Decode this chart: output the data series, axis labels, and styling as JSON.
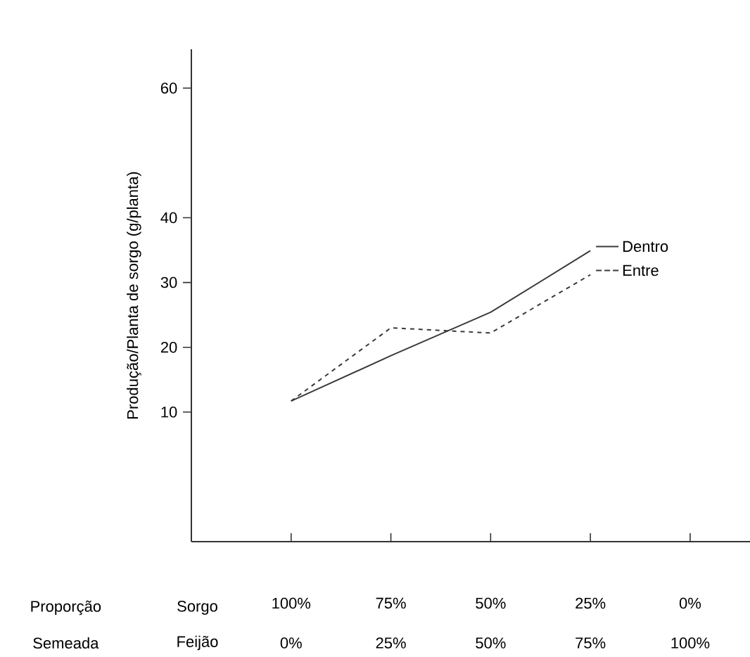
{
  "chart_data": {
    "type": "line",
    "ylabel": "Produção/Planta de sorgo (g/planta)",
    "categories": [
      "100%",
      "75%",
      "50%",
      "25%",
      "0%"
    ],
    "series": [
      {
        "name": "Dentro",
        "color": "#3a3a3a",
        "line_style": "solid",
        "values": [
          11.7,
          18.7,
          25.4,
          34.9,
          null
        ]
      },
      {
        "name": "Entre",
        "color": "#3a3a3a",
        "line_style": "dashed",
        "values": [
          11.7,
          23,
          22.2,
          31.2,
          null
        ]
      }
    ],
    "ylim": [
      -10,
      66
    ],
    "yticks": [
      10,
      20,
      30,
      40,
      60
    ],
    "grid": false,
    "legend": "right",
    "annotations": [
      "Proporção",
      "Semeada",
      "Sorgo",
      "Feijão",
      "0%",
      "25%",
      "50%",
      "75%",
      "100%"
    ]
  }
}
